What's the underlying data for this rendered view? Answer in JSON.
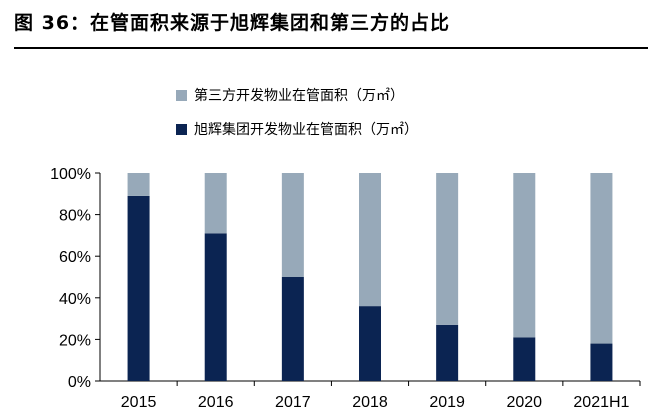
{
  "figure": {
    "title": "图 36：在管面积来源于旭辉集团和第三方的占比"
  },
  "colors": {
    "third_party": "#97a9b9",
    "cifi": "#0b2452"
  },
  "chart_data": {
    "type": "bar",
    "stacked": true,
    "percent": true,
    "categories": [
      "2015",
      "2016",
      "2017",
      "2018",
      "2019",
      "2020",
      "2021H1"
    ],
    "series": [
      {
        "name": "旭辉集团开发物业在管面积（万㎡）",
        "values": [
          89,
          71,
          50,
          36,
          27,
          21,
          18
        ]
      },
      {
        "name": "第三方开发物业在管面积（万㎡）",
        "values": [
          11,
          29,
          50,
          64,
          73,
          79,
          82
        ]
      }
    ],
    "yticks": [
      "0%",
      "20%",
      "40%",
      "60%",
      "80%",
      "100%"
    ],
    "ylim": [
      0,
      100
    ],
    "grid": false,
    "legend_position": "top"
  }
}
